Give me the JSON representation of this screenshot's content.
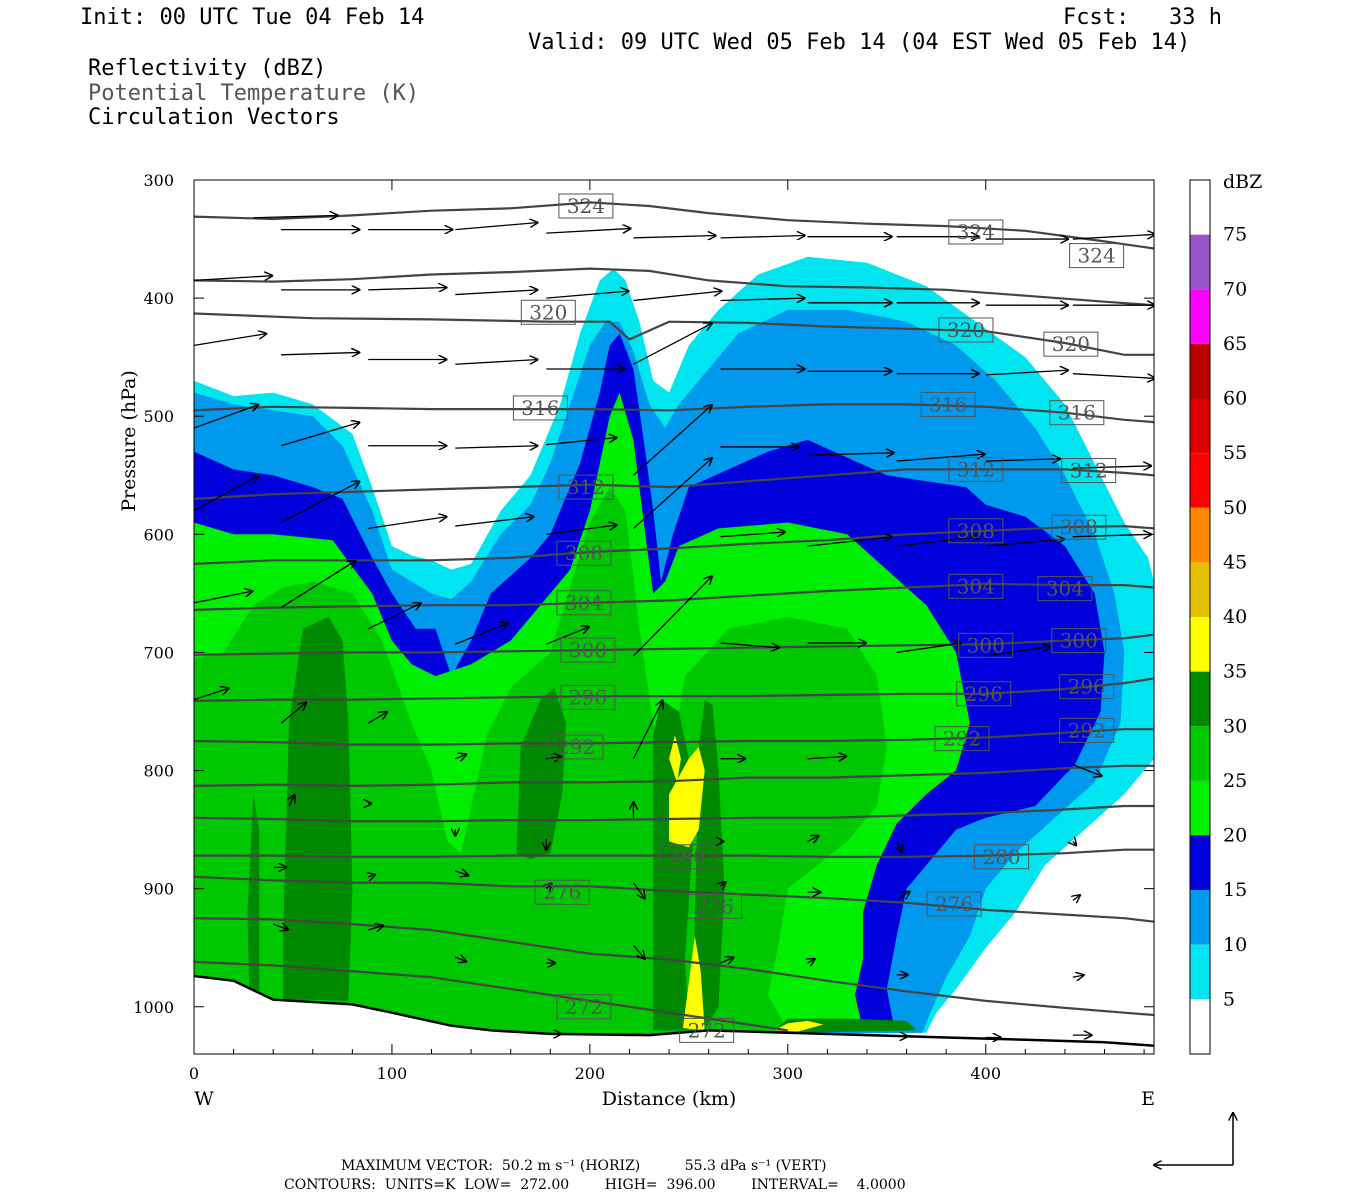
{
  "header": {
    "init": "Init: 00 UTC Tue 04 Feb 14",
    "fcst": "Fcst:   33 h",
    "valid": "Valid: 09 UTC Wed 05 Feb 14 (04 EST Wed 05 Feb 14)",
    "field1": "Reflectivity (dBZ)",
    "field2": "Potential Temperature (K)",
    "field3": "Circulation Vectors"
  },
  "footer": {
    "line1": "MAXIMUM VECTOR:  50.2 m s⁻¹ (HORIZ)          55.3 dPa s⁻¹ (VERT)",
    "line2": "CONTOURS:  UNITS=K  LOW=  272.00        HIGH=  396.00        INTERVAL=    4.0000"
  },
  "colors": {
    "dbz5": "#00e5f0",
    "dbz10": "#0099ee",
    "dbz15": "#0000dd",
    "dbz20": "#00ee00",
    "dbz25": "#00c800",
    "dbz30": "#008800",
    "dbz35": "#ffff00",
    "dbz40": "#e6c000",
    "dbz45": "#ff8800",
    "dbz50": "#ff0000",
    "dbz55": "#dd0000",
    "dbz60": "#bb0000",
    "dbz65": "#ff00ff",
    "dbz70": "#9955cc",
    "contour": "#444444"
  },
  "chart_data": {
    "type": "heatmap",
    "subtype": "vertical cross-section",
    "xlabel": "Distance (km)",
    "ylabel": "Pressure (hPa)",
    "xlim": [
      0,
      485
    ],
    "ylim": [
      1040,
      300
    ],
    "x_ticks": [
      "0",
      "100",
      "200",
      "300",
      "400"
    ],
    "y_ticks": [
      "300",
      "400",
      "500",
      "600",
      "700",
      "800",
      "900",
      "1000"
    ],
    "x_ends": [
      "W",
      "E"
    ],
    "colorbar": {
      "title": "dBZ",
      "labels": [
        "75",
        "70",
        "65",
        "60",
        "55",
        "50",
        "45",
        "40",
        "35",
        "30",
        "25",
        "20",
        "15",
        "10",
        "5"
      ]
    },
    "contour_labels": [
      {
        "value": "324",
        "x": 198,
        "p": 322
      },
      {
        "value": "324",
        "x": 395,
        "p": 344
      },
      {
        "value": "324",
        "x": 456,
        "p": 364
      },
      {
        "value": "320",
        "x": 179,
        "p": 412
      },
      {
        "value": "320",
        "x": 390,
        "p": 427
      },
      {
        "value": "320",
        "x": 443,
        "p": 439
      },
      {
        "value": "316",
        "x": 175,
        "p": 493
      },
      {
        "value": "316",
        "x": 381,
        "p": 490
      },
      {
        "value": "316",
        "x": 446,
        "p": 497
      },
      {
        "value": "312",
        "x": 198,
        "p": 560
      },
      {
        "value": "312",
        "x": 395,
        "p": 545
      },
      {
        "value": "312",
        "x": 452,
        "p": 546
      },
      {
        "value": "308",
        "x": 197,
        "p": 616
      },
      {
        "value": "308",
        "x": 395,
        "p": 597
      },
      {
        "value": "308",
        "x": 447,
        "p": 594
      },
      {
        "value": "304",
        "x": 197,
        "p": 658
      },
      {
        "value": "304",
        "x": 395,
        "p": 644
      },
      {
        "value": "304",
        "x": 440,
        "p": 646
      },
      {
        "value": "300",
        "x": 199,
        "p": 698
      },
      {
        "value": "300",
        "x": 400,
        "p": 694
      },
      {
        "value": "300",
        "x": 447,
        "p": 690
      },
      {
        "value": "296",
        "x": 199,
        "p": 738
      },
      {
        "value": "296",
        "x": 399,
        "p": 735
      },
      {
        "value": "296",
        "x": 451,
        "p": 729
      },
      {
        "value": "292",
        "x": 193,
        "p": 780
      },
      {
        "value": "292",
        "x": 388,
        "p": 773
      },
      {
        "value": "292",
        "x": 451,
        "p": 766
      },
      {
        "value": "280",
        "x": 249,
        "p": 873
      },
      {
        "value": "280",
        "x": 408,
        "p": 873
      },
      {
        "value": "276",
        "x": 186,
        "p": 903
      },
      {
        "value": "276",
        "x": 263,
        "p": 915
      },
      {
        "value": "276",
        "x": 384,
        "p": 913
      },
      {
        "value": "272",
        "x": 197,
        "p": 1000
      },
      {
        "value": "272",
        "x": 259,
        "p": 1020
      }
    ]
  }
}
